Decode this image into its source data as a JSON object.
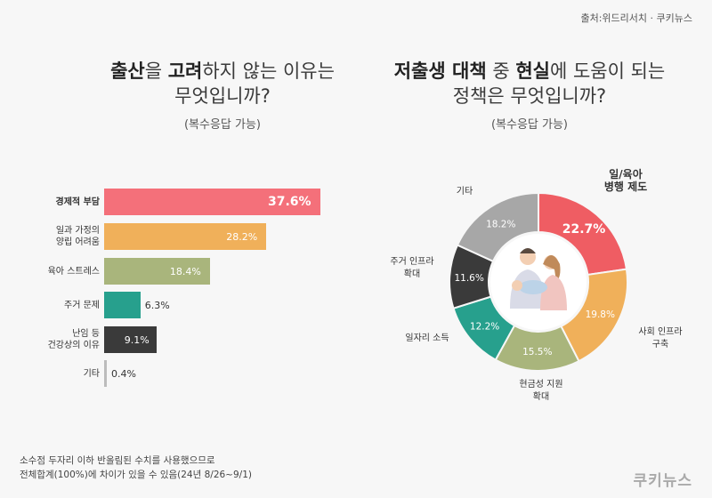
{
  "source": "출처:위드리서치 · 쿠키뉴스",
  "left": {
    "title_parts": [
      {
        "text": "출산",
        "bold": true
      },
      {
        "text": "을 ",
        "bold": false
      },
      {
        "text": "고려",
        "bold": true
      },
      {
        "text": "하지 않는 이유는",
        "bold": false
      }
    ],
    "title_line2": "무엇입니까?",
    "subtitle": "(복수응답 가능)"
  },
  "right": {
    "title_parts": [
      {
        "text": "저출생 대책",
        "bold": true
      },
      {
        "text": " 중 ",
        "bold": false
      },
      {
        "text": "현실",
        "bold": true
      },
      {
        "text": "에 도움이 되는",
        "bold": false
      }
    ],
    "title_line2": "정책은 무엇입니까?",
    "subtitle": "(복수응답 가능)"
  },
  "chart_data": [
    {
      "type": "bar",
      "orientation": "horizontal",
      "categories": [
        "경제적 부담",
        "일과 가정의 양립 어려움",
        "육아 스트레스",
        "주거 문제",
        "난임 등 건강상의 이유",
        "기타"
      ],
      "category_lines": [
        [
          "경제적 부담"
        ],
        [
          "일과 가정의",
          "양립 어려움"
        ],
        [
          "육아 스트레스"
        ],
        [
          "주거 문제"
        ],
        [
          "난임 등",
          "건강상의 이유"
        ],
        [
          "기타"
        ]
      ],
      "values": [
        37.6,
        28.2,
        18.4,
        6.3,
        9.1,
        0.4
      ],
      "value_labels": [
        "37.6%",
        "28.2%",
        "18.4%",
        "6.3%",
        "9.1%",
        "0.4%"
      ],
      "colors": [
        "#f4707a",
        "#f0b05a",
        "#a9b57c",
        "#27a08d",
        "#3a3a3a",
        "#bcbcbc"
      ],
      "xlim": [
        0,
        37.6
      ]
    },
    {
      "type": "pie",
      "donut": true,
      "categories": [
        "일/육아 병행 제도",
        "사회 인프라 구축",
        "현금성 지원 확대",
        "일자리 소득",
        "주거 인프라 확대",
        "기타"
      ],
      "category_lines": [
        [
          "일/육아",
          "병행 제도"
        ],
        [
          "사회 인프라",
          "구축"
        ],
        [
          "현금성 지원",
          "확대"
        ],
        [
          "일자리 소득"
        ],
        [
          "주거 인프라",
          "확대"
        ],
        [
          "기타"
        ]
      ],
      "values": [
        22.7,
        19.8,
        15.5,
        12.2,
        11.6,
        18.2
      ],
      "value_labels": [
        "22.7%",
        "19.8%",
        "15.5%",
        "12.2%",
        "11.6%",
        "18.2%"
      ],
      "colors": [
        "#ef5d63",
        "#f0b05a",
        "#a9b57c",
        "#27a08d",
        "#3a3a3a",
        "#a7a7a7"
      ]
    }
  ],
  "footnote": [
    "소수점 두자리 이하 반올림된 수치를 사용했으므로",
    "전체합계(100%)에 차이가 있을 수 있음(24년 8/26~9/1)"
  ],
  "logo": "쿠키뉴스"
}
